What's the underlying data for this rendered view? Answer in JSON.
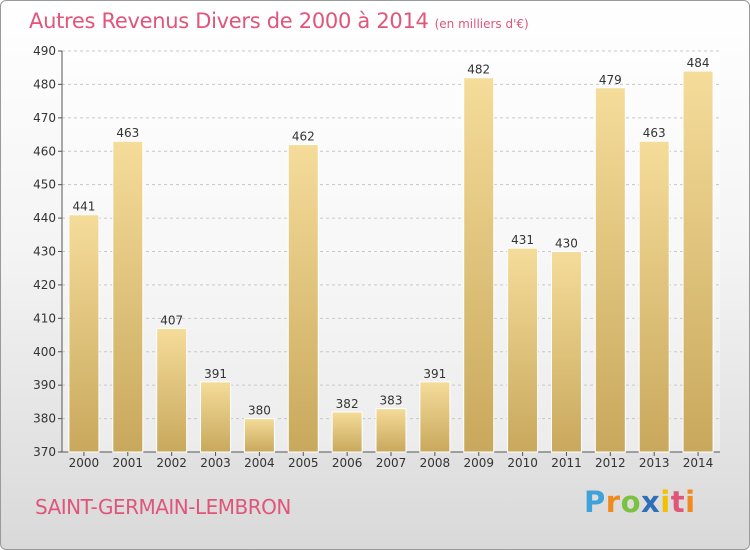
{
  "chart_data": {
    "type": "bar",
    "title": "Autres Revenus Divers de 2000 à 2014",
    "subtitle": "(en milliers d'€)",
    "categories": [
      "2000",
      "2001",
      "2002",
      "2003",
      "2004",
      "2005",
      "2006",
      "2007",
      "2008",
      "2009",
      "2010",
      "2011",
      "2012",
      "2013",
      "2014"
    ],
    "values": [
      441,
      463,
      407,
      391,
      380,
      462,
      382,
      383,
      391,
      482,
      431,
      430,
      479,
      463,
      484
    ],
    "ylim": [
      370,
      490
    ],
    "yticks": [
      370,
      380,
      390,
      400,
      410,
      420,
      430,
      440,
      450,
      460,
      470,
      480,
      490
    ],
    "grid": true,
    "bar_color_top": "#f5dc9a",
    "bar_color_bottom": "#c8a85c"
  },
  "footer": {
    "location": "SAINT-GERMAIN-LEMBRON",
    "brand_letters": [
      "P",
      "r",
      "o",
      "x",
      "i",
      "t",
      "i"
    ]
  }
}
